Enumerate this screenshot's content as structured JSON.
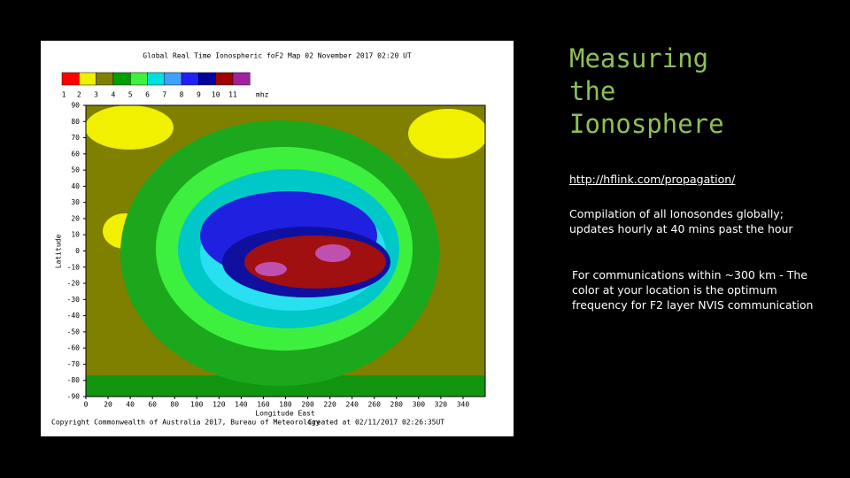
{
  "slide": {
    "title_lines": [
      "Measuring",
      "the",
      "Ionosphere"
    ],
    "link": "http://hflink.com/propagation/",
    "paragraph_1": "Compilation of all Ionosondes globally; updates hourly at 40 mins past the hour",
    "paragraph_2": "For communications within ~300 km - The color at your location is the optimum frequency for F2 layer NVIS communication"
  },
  "map": {
    "title": "Global Real Time Ionospheric foF2 Map   02 November 2017 02:20 UT",
    "scale_labels": [
      "1",
      "2",
      "3",
      "4",
      "5",
      "6",
      "7",
      "8",
      "9",
      "10",
      "11"
    ],
    "scale_unit": "mhz",
    "y_label": "Latitude",
    "y_ticks": [
      "90",
      "80",
      "70",
      "60",
      "50",
      "40",
      "30",
      "20",
      "10",
      "0",
      "-10",
      "-20",
      "-30",
      "-40",
      "-50",
      "-60",
      "-70",
      "-80",
      "-90"
    ],
    "x_label": "Longitude East",
    "x_ticks": [
      "0",
      "20",
      "40",
      "60",
      "80",
      "100",
      "120",
      "140",
      "160",
      "180",
      "200",
      "220",
      "240",
      "260",
      "280",
      "300",
      "320",
      "340"
    ],
    "copyright": "Copyright Commonwealth of Australia 2017, Bureau of Meteorology",
    "created": "Created at 02/11/2017 02:26:35UT"
  }
}
